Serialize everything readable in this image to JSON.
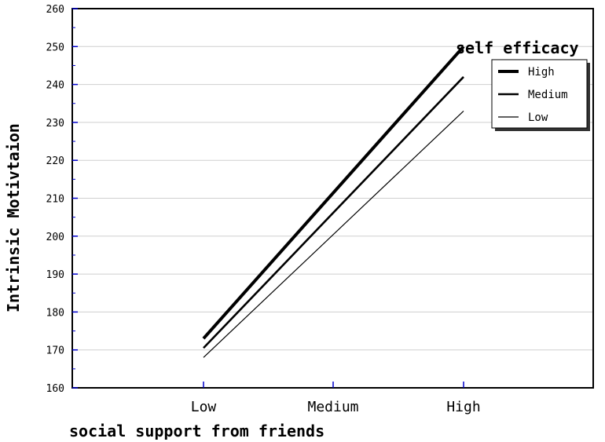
{
  "chart_data": {
    "type": "line",
    "categories": [
      "Low",
      "Medium",
      "High"
    ],
    "xlabel": "social support from friends",
    "ylabel": "Intrinsic Motivtaion",
    "ylim": [
      160,
      260
    ],
    "yticks": [
      160,
      170,
      180,
      190,
      200,
      210,
      220,
      230,
      240,
      250,
      260
    ],
    "grid": true,
    "legend_title": "self efficacy",
    "legend_position": "top-right",
    "series": [
      {
        "name": "High",
        "values": [
          173,
          null,
          250
        ],
        "line_width": "thick"
      },
      {
        "name": "Medium",
        "values": [
          170.5,
          null,
          242
        ],
        "line_width": "medium"
      },
      {
        "name": "Low",
        "values": [
          168,
          null,
          233
        ],
        "line_width": "thin"
      }
    ]
  }
}
